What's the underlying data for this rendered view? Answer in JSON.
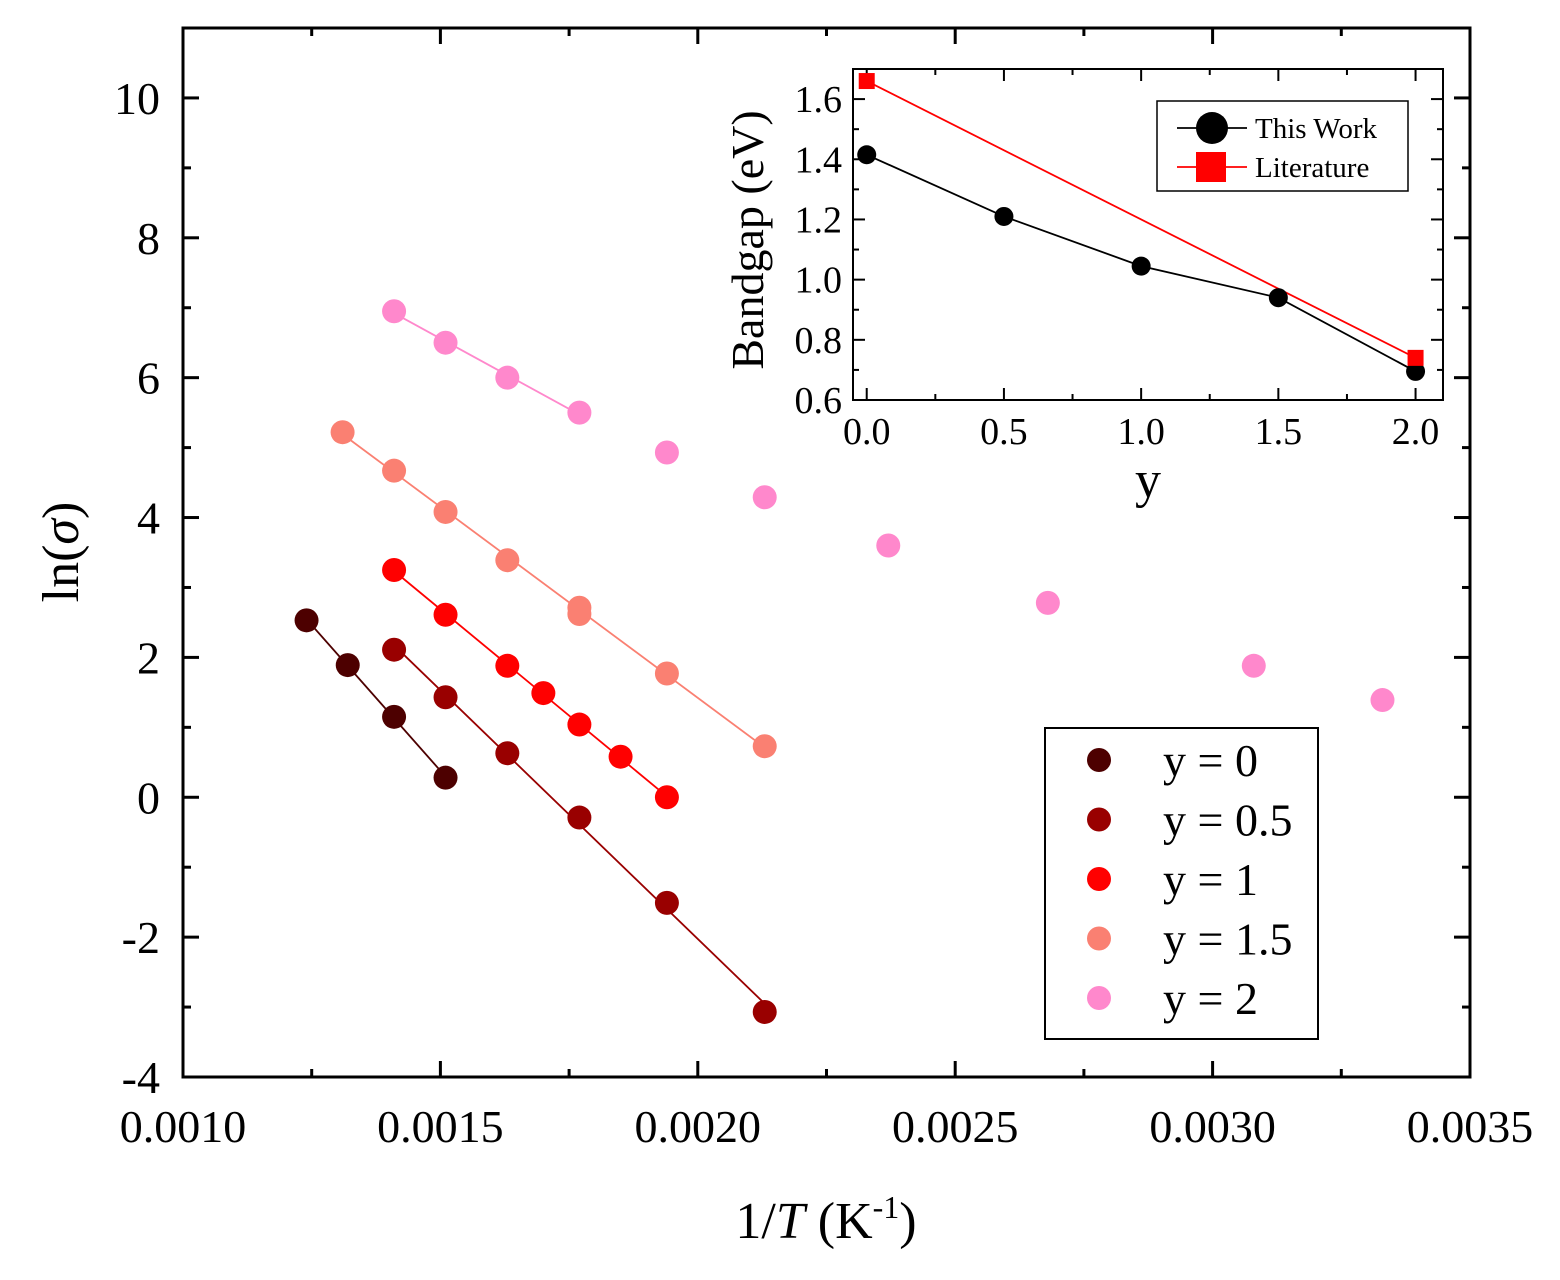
{
  "chart_data": [
    {
      "type": "scatter",
      "xlabel": {
        "prefix": "1/",
        "italic": "T",
        "unit_base": " (K",
        "unit_sup": "-1",
        "unit_close": ")"
      },
      "ylabel": {
        "prefix": "ln(",
        "italic": "σ",
        "suffix": ")"
      },
      "xlim": [
        0.001,
        0.0035
      ],
      "ylim": [
        -4,
        11
      ],
      "xticks": [
        0.001,
        0.0015,
        0.002,
        0.0025,
        0.003,
        0.0035
      ],
      "xtick_labels": [
        "0.0010",
        "0.0015",
        "0.0020",
        "0.0025",
        "0.0030",
        "0.0035"
      ],
      "yticks": [
        -4,
        -2,
        0,
        2,
        4,
        6,
        8,
        10
      ],
      "ytick_labels": [
        "-4",
        "-2",
        "0",
        "2",
        "4",
        "6",
        "8",
        "10"
      ],
      "legend_position": "bottom-right",
      "series": [
        {
          "name": "y = 0",
          "color": "#4D0000",
          "fit": true,
          "x": [
            0.00124,
            0.00132,
            0.00141,
            0.00151
          ],
          "y": [
            2.53,
            1.89,
            1.15,
            0.28
          ]
        },
        {
          "name": "y = 0.5",
          "color": "#990000",
          "fit": true,
          "x": [
            0.00141,
            0.00151,
            0.00163,
            0.00177,
            0.00194,
            0.00213
          ],
          "y": [
            2.11,
            1.43,
            0.63,
            -0.29,
            -1.51,
            -3.07
          ]
        },
        {
          "name": "y = 1",
          "color": "#FF0000",
          "fit": true,
          "x": [
            0.00141,
            0.00151,
            0.00163,
            0.0017,
            0.00177,
            0.00185,
            0.00194
          ],
          "y": [
            3.25,
            2.61,
            1.88,
            1.49,
            1.04,
            0.58,
            0.0
          ]
        },
        {
          "name": "y = 1.5",
          "color": "#FA8072",
          "fit": true,
          "x": [
            0.00131,
            0.00141,
            0.00151,
            0.00163,
            0.00177,
            0.00177,
            0.00194,
            0.00213
          ],
          "y": [
            5.22,
            4.67,
            4.08,
            3.39,
            2.71,
            2.62,
            1.77,
            0.73
          ]
        },
        {
          "name": "y = 2",
          "color": "#FF88CC",
          "fit": false,
          "fit_x": [
            0.00141,
            0.00177
          ],
          "x": [
            0.00141,
            0.00151,
            0.00163,
            0.00177,
            0.00194,
            0.00213,
            0.00237,
            0.00268,
            0.00308,
            0.00333
          ],
          "y": [
            6.95,
            6.5,
            6.0,
            5.5,
            4.93,
            4.29,
            3.6,
            2.78,
            1.88,
            1.39
          ]
        }
      ]
    },
    {
      "type": "line",
      "xlabel": "y",
      "ylabel": "Bandgap (eV)",
      "xlim": [
        -0.05,
        2.1
      ],
      "ylim": [
        0.6,
        1.7
      ],
      "xticks": [
        0.0,
        0.5,
        1.0,
        1.5,
        2.0
      ],
      "xtick_labels": [
        "0.0",
        "0.5",
        "1.0",
        "1.5",
        "2.0"
      ],
      "yticks": [
        0.6,
        0.8,
        1.0,
        1.2,
        1.4,
        1.6
      ],
      "ytick_labels": [
        "0.6",
        "0.8",
        "1.0",
        "1.2",
        "1.4",
        "1.6"
      ],
      "legend_position": "top-right",
      "series": [
        {
          "name": "This Work",
          "color": "#000000",
          "marker": "circle",
          "x": [
            0.0,
            0.5,
            1.0,
            1.5,
            2.0
          ],
          "y": [
            1.415,
            1.21,
            1.045,
            0.94,
            0.695
          ]
        },
        {
          "name": "Literature",
          "color": "#FF0000",
          "marker": "square",
          "x": [
            0.0,
            2.0
          ],
          "y": [
            1.66,
            0.74
          ]
        }
      ]
    }
  ]
}
